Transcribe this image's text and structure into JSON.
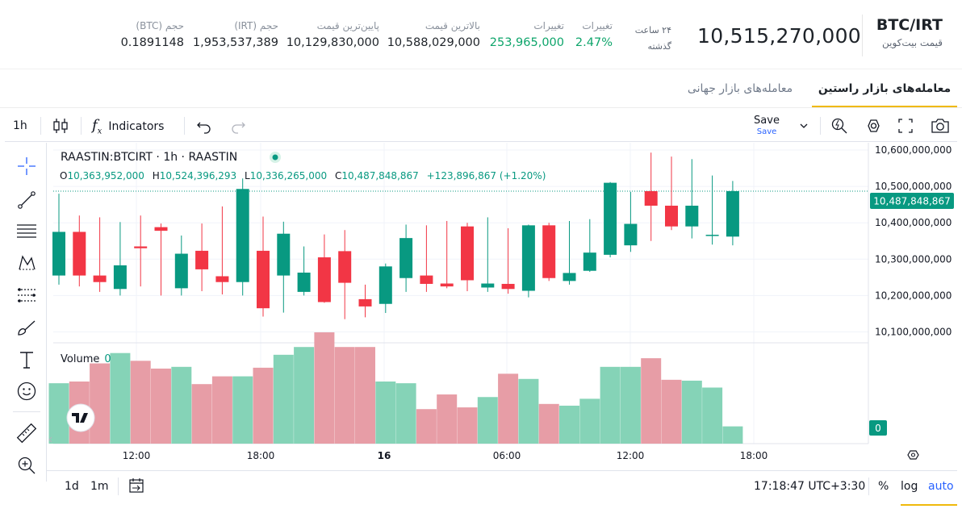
{
  "header": {
    "pair": "BTC/IRT",
    "pair_name": "قیمت بیت‌کوین",
    "last_price": "10,515,270,000",
    "period_line1": "۲۴ ساعت",
    "period_line2": "گذشته",
    "stats": [
      {
        "label": "تغییرات",
        "value": "2.47%",
        "color": "green"
      },
      {
        "label": "تغییرات",
        "value": "253,965,000",
        "color": "green"
      },
      {
        "label": "بالاترین قیمت",
        "value": "10,588,029,000",
        "color": "default"
      },
      {
        "label": "پایین‌ترین قیمت",
        "value": "10,129,830,000",
        "color": "default"
      },
      {
        "label": "حجم (IRT)",
        "value": "1,953,537,389",
        "color": "default"
      },
      {
        "label": "حجم (BTC)",
        "value": "0.1891148",
        "color": "default"
      }
    ]
  },
  "tabs": {
    "active": "معامله‌های بازار راستین",
    "inactive": "معامله‌های بازار جهانی"
  },
  "toolbar": {
    "interval": "1h",
    "indicators": "Indicators",
    "save": "Save",
    "save_sub": "Save"
  },
  "legend": {
    "symbol": "RAASTIN:BTCIRT · 1h · RAASTIN",
    "o_label": "O",
    "o": "10,363,952,000",
    "h_label": "H",
    "h": "10,524,396,293",
    "l_label": "L",
    "l": "10,336,265,000",
    "c_label": "C",
    "c": "10,487,848,867",
    "change": "+123,896,867 (+1.20%)",
    "volume_label": "Volume",
    "volume_value": "0"
  },
  "price_tag": "10,487,848,867",
  "volume_tag": "0",
  "bottom": {
    "range_1d": "1d",
    "range_1m": "1m",
    "clock": "17:18:47 UTC+3:30",
    "percent": "%",
    "log": "log",
    "auto": "auto"
  },
  "colors": {
    "up": "#089981",
    "down": "#f23645",
    "up_vol": "#85d3b7",
    "down_vol": "#e79da6",
    "accent": "#f0b90b",
    "blue": "#2962ff"
  },
  "chart_data": {
    "type": "candlestick",
    "x_tick_labels": [
      "12:00",
      "18:00",
      "16",
      "06:00",
      "12:00",
      "18:00"
    ],
    "y_tick_labels": [
      "10,600,000,000",
      "10,500,000,000",
      "10,400,000,000",
      "10,300,000,000",
      "10,200,000,000",
      "10,100,000,000"
    ],
    "y_ticks": [
      10600000000,
      10500000000,
      10400000000,
      10300000000,
      10200000000,
      10100000000
    ],
    "ylim": [
      10070000000,
      10620000000
    ],
    "volume_ylim": [
      0,
      115
    ],
    "grid": true,
    "candles": [
      {
        "o": 10255000000,
        "h": 10480000000,
        "l": 10230000000,
        "c": 10375000000,
        "v": 70
      },
      {
        "o": 10375000000,
        "h": 10420000000,
        "l": 10225000000,
        "c": 10255000000,
        "v": 72
      },
      {
        "o": 10255000000,
        "h": 10415000000,
        "l": 10210000000,
        "c": 10237000000,
        "v": 93
      },
      {
        "o": 10218000000,
        "h": 10402000000,
        "l": 10200000000,
        "c": 10283000000,
        "v": 105
      },
      {
        "o": 10335000000,
        "h": 10420000000,
        "l": 10225000000,
        "c": 10330000000,
        "v": 96
      },
      {
        "o": 10388000000,
        "h": 10398000000,
        "l": 10200000000,
        "c": 10378000000,
        "v": 87
      },
      {
        "o": 10220000000,
        "h": 10365000000,
        "l": 10200000000,
        "c": 10315000000,
        "v": 89
      },
      {
        "o": 10323000000,
        "h": 10398000000,
        "l": 10212000000,
        "c": 10272000000,
        "v": 69
      },
      {
        "o": 10253000000,
        "h": 10445000000,
        "l": 10203000000,
        "c": 10237000000,
        "v": 78
      },
      {
        "o": 10237000000,
        "h": 10522000000,
        "l": 10200000000,
        "c": 10493000000,
        "v": 78
      },
      {
        "o": 10323000000,
        "h": 10417000000,
        "l": 10142000000,
        "c": 10165000000,
        "v": 88
      },
      {
        "o": 10255000000,
        "h": 10403000000,
        "l": 10153000000,
        "c": 10370000000,
        "v": 103
      },
      {
        "o": 10210000000,
        "h": 10335000000,
        "l": 10200000000,
        "c": 10263000000,
        "v": 112
      },
      {
        "o": 10305000000,
        "h": 10368000000,
        "l": 10180000000,
        "c": 10182000000,
        "v": 129
      },
      {
        "o": 10322000000,
        "h": 10380000000,
        "l": 10135000000,
        "c": 10235000000,
        "v": 112
      },
      {
        "o": 10190000000,
        "h": 10230000000,
        "l": 10140000000,
        "c": 10170000000,
        "v": 112
      },
      {
        "o": 10177000000,
        "h": 10288000000,
        "l": 10152000000,
        "c": 10280000000,
        "v": 72
      },
      {
        "o": 10248000000,
        "h": 10395000000,
        "l": 10210000000,
        "c": 10358000000,
        "v": 70
      },
      {
        "o": 10255000000,
        "h": 10393000000,
        "l": 10210000000,
        "c": 10232000000,
        "v": 40
      },
      {
        "o": 10233000000,
        "h": 10405000000,
        "l": 10220000000,
        "c": 10225000000,
        "v": 57
      },
      {
        "o": 10390000000,
        "h": 10400000000,
        "l": 10212000000,
        "c": 10242000000,
        "v": 42
      },
      {
        "o": 10222000000,
        "h": 10415000000,
        "l": 10210000000,
        "c": 10233000000,
        "v": 54
      },
      {
        "o": 10232000000,
        "h": 10385000000,
        "l": 10205000000,
        "c": 10218000000,
        "v": 81
      },
      {
        "o": 10213000000,
        "h": 10395000000,
        "l": 10195000000,
        "c": 10393000000,
        "v": 75
      },
      {
        "o": 10393000000,
        "h": 10400000000,
        "l": 10240000000,
        "c": 10248000000,
        "v": 46
      },
      {
        "o": 10240000000,
        "h": 10405000000,
        "l": 10230000000,
        "c": 10262000000,
        "v": 44
      },
      {
        "o": 10268000000,
        "h": 10410000000,
        "l": 10265000000,
        "c": 10318000000,
        "v": 52
      },
      {
        "o": 10312000000,
        "h": 10512000000,
        "l": 10305000000,
        "c": 10510000000,
        "v": 89
      },
      {
        "o": 10338000000,
        "h": 10485000000,
        "l": 10320000000,
        "c": 10397000000,
        "v": 89
      },
      {
        "o": 10487000000,
        "h": 10593000000,
        "l": 10350000000,
        "c": 10447000000,
        "v": 99
      },
      {
        "o": 10447000000,
        "h": 10582000000,
        "l": 10380000000,
        "c": 10390000000,
        "v": 74
      },
      {
        "o": 10390000000,
        "h": 10575000000,
        "l": 10357000000,
        "c": 10447000000,
        "v": 73
      },
      {
        "o": 10365000000,
        "h": 10530000000,
        "l": 10340000000,
        "c": 10367000000,
        "v": 65
      },
      {
        "o": 10362000000,
        "h": 10515000000,
        "l": 10338000000,
        "c": 10487000000,
        "v": 20
      }
    ]
  }
}
